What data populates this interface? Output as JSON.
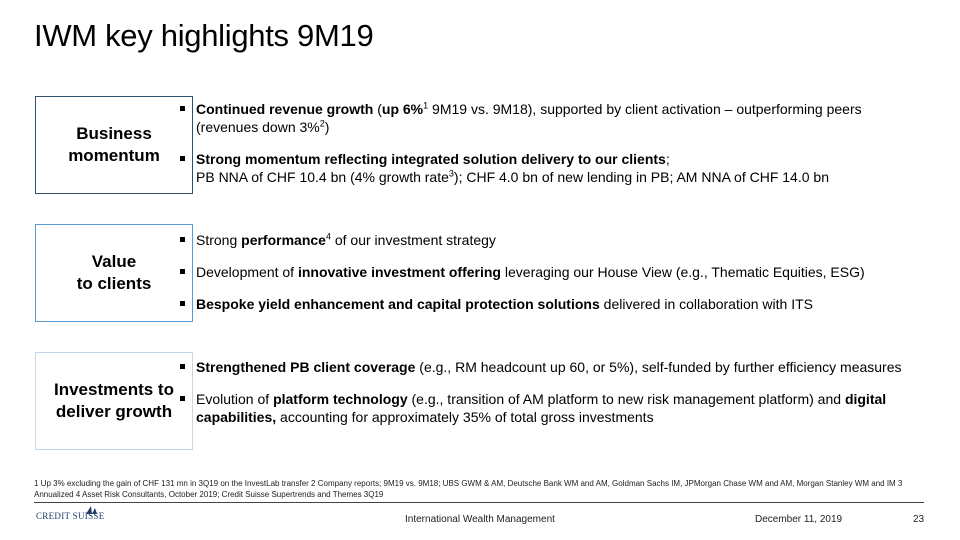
{
  "title": "IWM key highlights 9M19",
  "sections": [
    {
      "label": "Business\nmomentum",
      "bullets": [
        [
          {
            "t": "Continued revenue growth",
            "b": 1
          },
          {
            "t": " ("
          },
          {
            "t": "up 6%",
            "b": 1
          },
          {
            "t": "1",
            "s": 1
          },
          {
            "t": " 9M19  vs. 9M18), supported by client activation – outperforming peers (revenues down 3%"
          },
          {
            "t": "2",
            "s": 1
          },
          {
            "t": ")"
          }
        ],
        [
          {
            "t": "Strong momentum reflecting integrated solution delivery to our clients",
            "b": 1
          },
          {
            "t": ";\nPB NNA of CHF 10.4 bn (4% growth rate"
          },
          {
            "t": "3",
            "s": 1
          },
          {
            "t": "); CHF 4.0 bn of new lending in PB; AM NNA of CHF 14.0 bn"
          }
        ]
      ]
    },
    {
      "label": "Value\nto clients",
      "bullets": [
        [
          {
            "t": "Strong "
          },
          {
            "t": "performance",
            "b": 1
          },
          {
            "t": "4",
            "s": 1
          },
          {
            "t": " of our investment strategy"
          }
        ],
        [
          {
            "t": "Development of "
          },
          {
            "t": "innovative investment offering",
            "b": 1
          },
          {
            "t": " leveraging our House View (e.g., Thematic Equities, ESG)"
          }
        ],
        [
          {
            "t": "Bespoke yield enhancement and capital protection solutions",
            "b": 1
          },
          {
            "t": " delivered in collaboration with ITS"
          }
        ]
      ]
    },
    {
      "label": "Investments to\ndeliver growth",
      "bullets": [
        [
          {
            "t": "Strengthened PB client coverage",
            "b": 1
          },
          {
            "t": " (e.g., RM headcount up 60, or 5%), self-funded by further efficiency measures"
          }
        ],
        [
          {
            "t": "Evolution of "
          },
          {
            "t": "platform technology",
            "b": 1
          },
          {
            "t": " (e.g., transition of AM platform to new risk management platform) and "
          },
          {
            "t": "digital capabilities,",
            "b": 1
          },
          {
            "t": " accounting for approximately 35% of total gross investments"
          }
        ]
      ]
    }
  ],
  "footnotes": "1 Up 3% excluding the gain of CHF 131 mn in 3Q19 on the InvestLab transfer    2 Company reports; 9M19 vs. 9M18; UBS GWM & AM, Deutsche Bank WM and AM, Goldman Sachs IM, JPMorgan Chase WM and AM, Morgan Stanley WM and IM    3 Annualized    4 Asset Risk Consultants, October 2019; Credit Suisse Supertrends and Themes 3Q19",
  "footer": {
    "logo": "CREDIT SUISSE",
    "center": "International Wealth Management",
    "date": "December 11, 2019",
    "page": "23"
  }
}
